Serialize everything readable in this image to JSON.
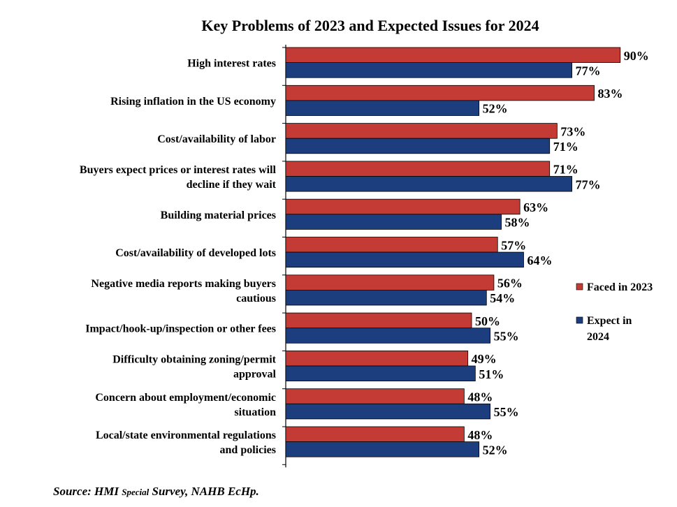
{
  "chart_data": {
    "type": "bar",
    "orientation": "horizontal",
    "title": "Key Problems of 2023 and Expected Issues for 2024",
    "categories": [
      [
        "High interest rates"
      ],
      [
        "Rising inflation in the US economy"
      ],
      [
        "Cost/availability of labor"
      ],
      [
        "Buyers expect prices or interest rates will",
        "decline if they wait"
      ],
      [
        "Building material prices"
      ],
      [
        "Cost/availability of developed lots"
      ],
      [
        "Negative media reports making buyers",
        "cautious"
      ],
      [
        "Impact/hook-up/inspection or other fees"
      ],
      [
        "Difficulty obtaining zoning/permit",
        "approval"
      ],
      [
        "Concern about employment/economic",
        "situation"
      ],
      [
        "Local/state environmental regulations",
        "and policies"
      ]
    ],
    "series": [
      {
        "name": "Faced in 2023",
        "legend_lines": [
          "Faced in 2023"
        ],
        "color": "#c33b34",
        "values": [
          90,
          83,
          73,
          71,
          63,
          57,
          56,
          50,
          49,
          48,
          48
        ],
        "labels": [
          "90%",
          "83%",
          "73%",
          "71%",
          "63%",
          "57%",
          "56%",
          "50%",
          "49%",
          "48%",
          "48%"
        ]
      },
      {
        "name": "Expect in 2024",
        "legend_lines": [
          "Expect in",
          "2024"
        ],
        "color": "#1d3e7e",
        "values": [
          77,
          52,
          71,
          77,
          58,
          64,
          54,
          55,
          51,
          55,
          52
        ],
        "labels": [
          "77%",
          "52%",
          "71%",
          "77%",
          "58%",
          "64%",
          "54%",
          "55%",
          "51%",
          "55%",
          "52%"
        ]
      }
    ],
    "xlabel": "",
    "ylabel": "",
    "xlim": [
      0,
      100
    ],
    "grid": false,
    "legend_position": "right"
  },
  "source": {
    "prefix": "Source: HMI ",
    "special": "Special",
    "suffix": " Survey, NAHB EcHp."
  }
}
